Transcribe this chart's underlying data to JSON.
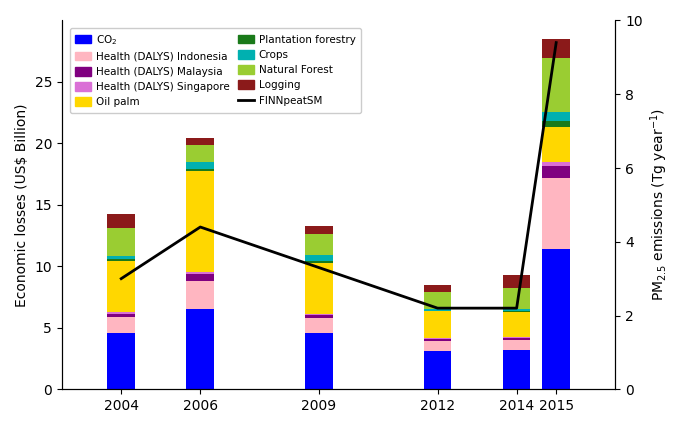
{
  "years": [
    2004,
    2006,
    2009,
    2012,
    2014,
    2015
  ],
  "bar_width": 0.7,
  "stacks": {
    "CO2": [
      4.6,
      6.5,
      4.6,
      3.1,
      3.2,
      11.4
    ],
    "Health_Indonesia": [
      1.3,
      2.3,
      1.2,
      0.8,
      0.8,
      5.8
    ],
    "Health_Malaysia": [
      0.25,
      0.55,
      0.25,
      0.15,
      0.15,
      1.0
    ],
    "Health_Singapore": [
      0.1,
      0.2,
      0.1,
      0.1,
      0.1,
      0.3
    ],
    "Oil_palm": [
      4.2,
      8.2,
      4.1,
      2.2,
      2.0,
      2.8
    ],
    "Plantation_forestry": [
      0.15,
      0.2,
      0.15,
      0.05,
      0.1,
      0.55
    ],
    "Crops": [
      0.25,
      0.55,
      0.55,
      0.1,
      0.2,
      0.7
    ],
    "Natural_Forest": [
      2.3,
      1.35,
      1.7,
      1.4,
      1.65,
      4.4
    ],
    "Logging": [
      1.1,
      0.6,
      0.6,
      0.55,
      1.1,
      1.55
    ]
  },
  "colors": {
    "CO2": "#0000ff",
    "Health_Indonesia": "#ffb6c1",
    "Health_Malaysia": "#800080",
    "Health_Singapore": "#da70d6",
    "Oil_palm": "#ffd700",
    "Plantation_forestry": "#1a7a1a",
    "Crops": "#00b0b0",
    "Natural_Forest": "#9acd32",
    "Logging": "#8b1a1a"
  },
  "labels": {
    "CO2": "CO$_2$",
    "Health_Indonesia": "Health (DALYS) Indonesia",
    "Health_Malaysia": "Health (DALYS) Malaysia",
    "Health_Singapore": "Health (DALYS) Singapore",
    "Oil_palm": "Oil palm",
    "Plantation_forestry": "Plantation forestry",
    "Crops": "Crops",
    "Natural_Forest": "Natural Forest",
    "Logging": "Logging"
  },
  "finn_line_right": [
    3.0,
    4.4,
    3.3,
    2.2,
    2.2,
    9.4
  ],
  "finn_label": "FINNpeatSM",
  "xlim": [
    2002.5,
    2016.5
  ],
  "ylim_left": [
    0,
    30
  ],
  "ylim_right": [
    0,
    10
  ],
  "ylabel_left": "Economic losses (US$ Billion)",
  "ylabel_right": "PM$_{2.5}$ emissions (Tg year$^{-1}$)",
  "yticks_left": [
    0,
    5,
    10,
    15,
    20,
    25
  ],
  "yticks_right": [
    0,
    2,
    4,
    6,
    8,
    10
  ],
  "figsize": [
    6.85,
    4.28
  ],
  "dpi": 100
}
